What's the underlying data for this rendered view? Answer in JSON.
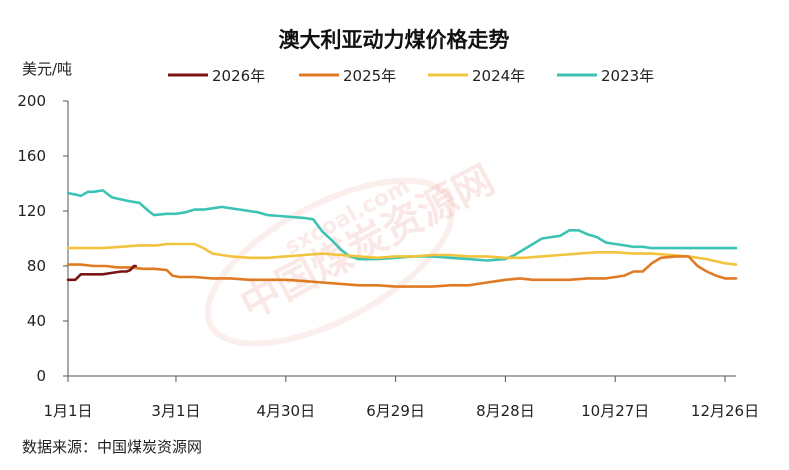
{
  "chart_data": {
    "type": "line",
    "title": "澳大利亚动力煤价格走势",
    "ylabel": "美元/吨",
    "ylim": [
      0,
      200
    ],
    "yticks": [
      0,
      40,
      80,
      120,
      160,
      200
    ],
    "xlim": [
      1,
      366
    ],
    "xticks": [
      {
        "day": 1,
        "label": "1月1日"
      },
      {
        "day": 60,
        "label": "3月1日"
      },
      {
        "day": 120,
        "label": "4月30日"
      },
      {
        "day": 180,
        "label": "6月29日"
      },
      {
        "day": 240,
        "label": "8月28日"
      },
      {
        "day": 300,
        "label": "10月27日"
      },
      {
        "day": 360,
        "label": "12月26日"
      }
    ],
    "legend_position": "top",
    "grid": false,
    "source": "数据来源：中国煤炭资源网",
    "watermark": "中国煤炭资源网",
    "watermark_small": "sxcoal.com",
    "series": [
      {
        "name": "2026年",
        "color": "#7b1416",
        "x": [
          1,
          5,
          8,
          12,
          20,
          25,
          30,
          33,
          35,
          37,
          38
        ],
        "y": [
          70,
          70,
          74,
          74,
          74,
          75,
          76,
          76,
          77,
          80,
          80
        ]
      },
      {
        "name": "2025年",
        "color": "#e07b24",
        "x": [
          1,
          8,
          15,
          22,
          28,
          35,
          42,
          48,
          55,
          58,
          62,
          70,
          80,
          90,
          100,
          110,
          120,
          130,
          140,
          150,
          160,
          170,
          180,
          190,
          200,
          210,
          220,
          225,
          230,
          240,
          248,
          255,
          265,
          275,
          285,
          295,
          305,
          310,
          315,
          320,
          325,
          333,
          340,
          345,
          350,
          355,
          360,
          366
        ],
        "y": [
          81,
          81,
          80,
          80,
          79,
          79,
          78,
          78,
          77,
          73,
          72,
          72,
          71,
          71,
          70,
          70,
          70,
          69,
          68,
          67,
          66,
          66,
          65,
          65,
          65,
          66,
          66,
          67,
          68,
          70,
          71,
          70,
          70,
          70,
          71,
          71,
          73,
          76,
          76,
          82,
          86,
          87,
          87,
          80,
          76,
          73,
          71,
          71
        ]
      },
      {
        "name": "2024年",
        "color": "#f2c43e",
        "x": [
          1,
          10,
          20,
          30,
          40,
          50,
          55,
          60,
          70,
          75,
          80,
          90,
          100,
          110,
          120,
          130,
          140,
          150,
          160,
          170,
          180,
          190,
          200,
          210,
          220,
          230,
          240,
          250,
          260,
          270,
          280,
          290,
          300,
          310,
          320,
          330,
          340,
          350,
          360,
          366
        ],
        "y": [
          93,
          93,
          93,
          94,
          95,
          95,
          96,
          96,
          96,
          93,
          89,
          87,
          86,
          86,
          87,
          88,
          89,
          88,
          87,
          86,
          87,
          87,
          88,
          88,
          87,
          87,
          86,
          86,
          87,
          88,
          89,
          90,
          90,
          89,
          89,
          88,
          87,
          85,
          82,
          81
        ]
      },
      {
        "name": "2023年",
        "color": "#3cc3b4",
        "x": [
          1,
          5,
          8,
          12,
          15,
          20,
          25,
          28,
          35,
          40,
          45,
          48,
          55,
          60,
          65,
          70,
          75,
          80,
          85,
          90,
          95,
          100,
          105,
          110,
          120,
          130,
          135,
          140,
          145,
          150,
          155,
          160,
          170,
          180,
          190,
          200,
          210,
          220,
          230,
          240,
          245,
          250,
          255,
          260,
          265,
          270,
          275,
          280,
          285,
          290,
          295,
          300,
          305,
          310,
          315,
          320,
          330,
          340,
          350,
          360,
          366
        ],
        "y": [
          133,
          132,
          131,
          134,
          134,
          135,
          130,
          129,
          127,
          126,
          120,
          117,
          118,
          118,
          119,
          121,
          121,
          122,
          123,
          122,
          121,
          120,
          119,
          117,
          116,
          115,
          114,
          105,
          99,
          92,
          87,
          85,
          85,
          86,
          87,
          87,
          86,
          85,
          84,
          85,
          88,
          92,
          96,
          100,
          101,
          102,
          106,
          106,
          103,
          101,
          97,
          96,
          95,
          94,
          94,
          93,
          93,
          93,
          93,
          93,
          93
        ]
      }
    ]
  }
}
